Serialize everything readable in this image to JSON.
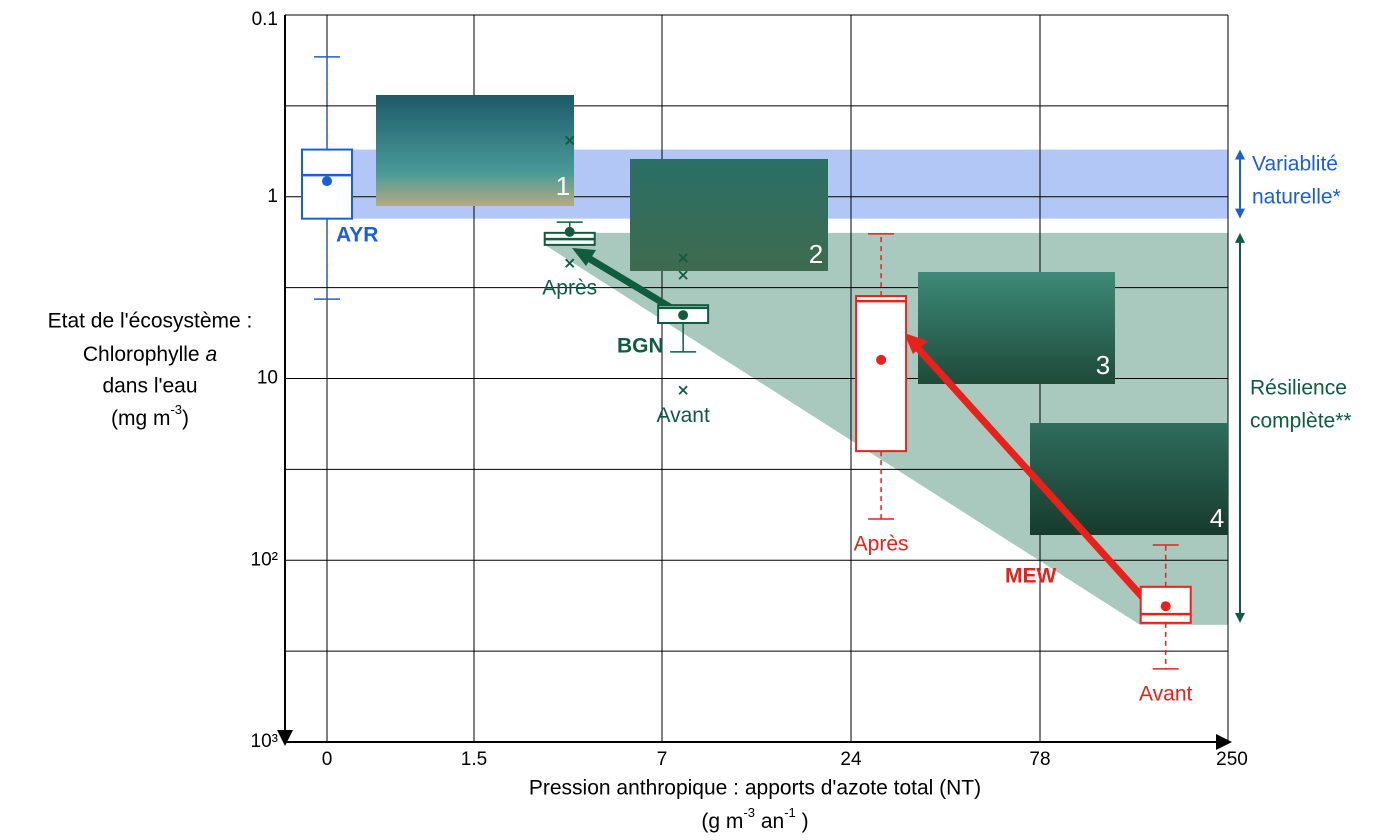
{
  "chart_data": {
    "type": "box",
    "y_label": {
      "line1": "Etat de l'écosystème :",
      "line2": "Chlorophylle",
      "line2_italic": "a",
      "line3": "dans l'eau",
      "line4": "(mg m",
      "line4_sup": "-3",
      "line4_end": ")"
    },
    "x_label": {
      "line1": "Pression anthropique : apports d'azote total (NT)",
      "line2": "(g m",
      "line2_sup1": "-3",
      "line2_mid": " an",
      "line2_sup2": "-1",
      "line2_end": " )"
    },
    "ylim": [
      0.1,
      1000
    ],
    "y_log": true,
    "y_inverted": true,
    "yticks": [
      0.1,
      1,
      10,
      {
        "value": 100,
        "label": "10²"
      },
      {
        "value": 1000,
        "label": "10³"
      }
    ],
    "minor_yticks": [
      0.316,
      3.16,
      31.6,
      316
    ],
    "xlim": [
      0,
      250
    ],
    "xticks": [
      0,
      1.5,
      7,
      24,
      78,
      250
    ],
    "grid": true,
    "series": [
      {
        "name": "AYR",
        "color": "#1a5fd6",
        "whisker_style": "dashed",
        "boxes": [
          {
            "label": null,
            "x": 0,
            "min": 0.17,
            "q1": 0.55,
            "median": 0.76,
            "q3": 1.32,
            "max": 3.66,
            "mean": 0.82,
            "outliers": []
          }
        ]
      },
      {
        "name": "BGN",
        "color": "#0f5c40",
        "whisker_style": "solid",
        "boxes": [
          {
            "label": "Après",
            "x": 4.3,
            "min": 1.38,
            "q1": 1.58,
            "median": 1.71,
            "q3": 1.84,
            "max": 1.84,
            "mean": 1.56,
            "outliers": [
              0.49,
              2.32
            ]
          },
          {
            "label": "Avant",
            "x": 8.9,
            "min": 3.95,
            "q1": 3.95,
            "median": 4.09,
            "q3": 4.95,
            "max": 7.14,
            "mean": 4.48,
            "outliers": [
              2.17,
              2.7,
              11.6
            ]
          }
        ]
      },
      {
        "name": "MEW",
        "color": "#e8211b",
        "whisker_style": "dashed",
        "boxes": [
          {
            "label": "Après",
            "x": 32.6,
            "min": 1.6,
            "q1": 3.52,
            "median": 3.75,
            "q3": 25.1,
            "max": 59.3,
            "mean": 7.9,
            "outliers": []
          },
          {
            "label": "Avant",
            "x": 193,
            "min": 82.4,
            "q1": 140,
            "median": 198,
            "q3": 221,
            "max": 396,
            "mean": 179,
            "outliers": []
          }
        ]
      }
    ],
    "bands": [
      {
        "name": "variability",
        "label1": "Variablité",
        "label2": "naturelle*",
        "color": "#1a5fd6",
        "fill": "#b3c7f7",
        "range": [
          0.55,
          1.32
        ]
      },
      {
        "name": "resilience",
        "label1": "Résilience",
        "label2": "complète**",
        "color": "#0f5c40",
        "fill": "#a9c9bf",
        "range": [
          1.58,
          221
        ]
      }
    ],
    "images": [
      "1",
      "2",
      "3",
      "4"
    ]
  }
}
